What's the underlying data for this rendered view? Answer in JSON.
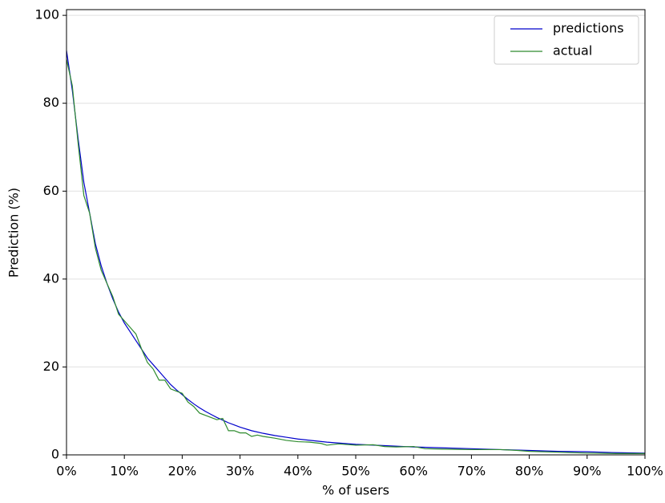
{
  "chart_data": {
    "type": "line",
    "xlabel": "% of users",
    "ylabel": "Prediction (%)",
    "xlim": [
      0,
      100
    ],
    "ylim": [
      0,
      101.3
    ],
    "xticks": [
      {
        "value": 0,
        "label": "0%"
      },
      {
        "value": 10,
        "label": "10%"
      },
      {
        "value": 20,
        "label": "20%"
      },
      {
        "value": 30,
        "label": "30%"
      },
      {
        "value": 40,
        "label": "40%"
      },
      {
        "value": 50,
        "label": "50%"
      },
      {
        "value": 60,
        "label": "60%"
      },
      {
        "value": 70,
        "label": "70%"
      },
      {
        "value": 80,
        "label": "80%"
      },
      {
        "value": 90,
        "label": "90%"
      },
      {
        "value": 100,
        "label": "100%"
      }
    ],
    "yticks": [
      0,
      20,
      40,
      60,
      80,
      100
    ],
    "grid": true,
    "legend": "upper right",
    "series": [
      {
        "name": "predictions",
        "color": "#0000cc",
        "x": [
          0,
          1,
          2,
          3,
          4,
          5,
          6,
          7,
          8,
          9,
          10,
          11,
          12,
          13,
          14,
          15,
          16,
          17,
          18,
          19,
          20,
          21,
          22,
          23,
          24,
          25,
          26,
          27,
          28,
          29,
          30,
          32,
          34,
          36,
          38,
          40,
          45,
          50,
          55,
          60,
          65,
          70,
          75,
          80,
          85,
          90,
          95,
          100
        ],
        "values": [
          92,
          83,
          72,
          62,
          55,
          48,
          43,
          39,
          35.5,
          32.5,
          30,
          28,
          26,
          24,
          22,
          20.5,
          19,
          17.5,
          16,
          14.8,
          13.7,
          12.6,
          11.6,
          10.7,
          9.9,
          9.2,
          8.5,
          7.9,
          7.3,
          6.8,
          6.3,
          5.5,
          4.9,
          4.4,
          4.0,
          3.6,
          2.9,
          2.4,
          2.1,
          1.8,
          1.6,
          1.4,
          1.2,
          1.0,
          0.8,
          0.7,
          0.5,
          0.4
        ]
      },
      {
        "name": "actual",
        "color": "#2e8b2e",
        "x": [
          0,
          1,
          2,
          3,
          4,
          5,
          6,
          7,
          8,
          9,
          10,
          11,
          12,
          13,
          14,
          15,
          16,
          17,
          18,
          19,
          20,
          21,
          22,
          23,
          24,
          25,
          26,
          27,
          28,
          29,
          30,
          31,
          32,
          33,
          34,
          36,
          38,
          40,
          42,
          44,
          45,
          47,
          50,
          53,
          55,
          57,
          60,
          62,
          65,
          70,
          75,
          78,
          80,
          85,
          90,
          95,
          100
        ],
        "values": [
          90,
          84,
          71,
          59,
          55,
          47,
          42,
          39,
          36,
          32,
          30.5,
          29,
          27.5,
          24,
          21,
          19.5,
          17,
          17,
          15,
          14.5,
          14,
          12,
          11,
          9.5,
          9,
          8.5,
          8,
          8.3,
          5.5,
          5.5,
          5,
          5,
          4.2,
          4.5,
          4.2,
          3.8,
          3.3,
          3.0,
          2.9,
          2.6,
          2.2,
          2.5,
          2.2,
          2.3,
          1.9,
          1.8,
          1.9,
          1.4,
          1.3,
          1.2,
          1.2,
          1.0,
          0.8,
          0.6,
          0.4,
          0.3,
          0.3
        ]
      }
    ]
  }
}
